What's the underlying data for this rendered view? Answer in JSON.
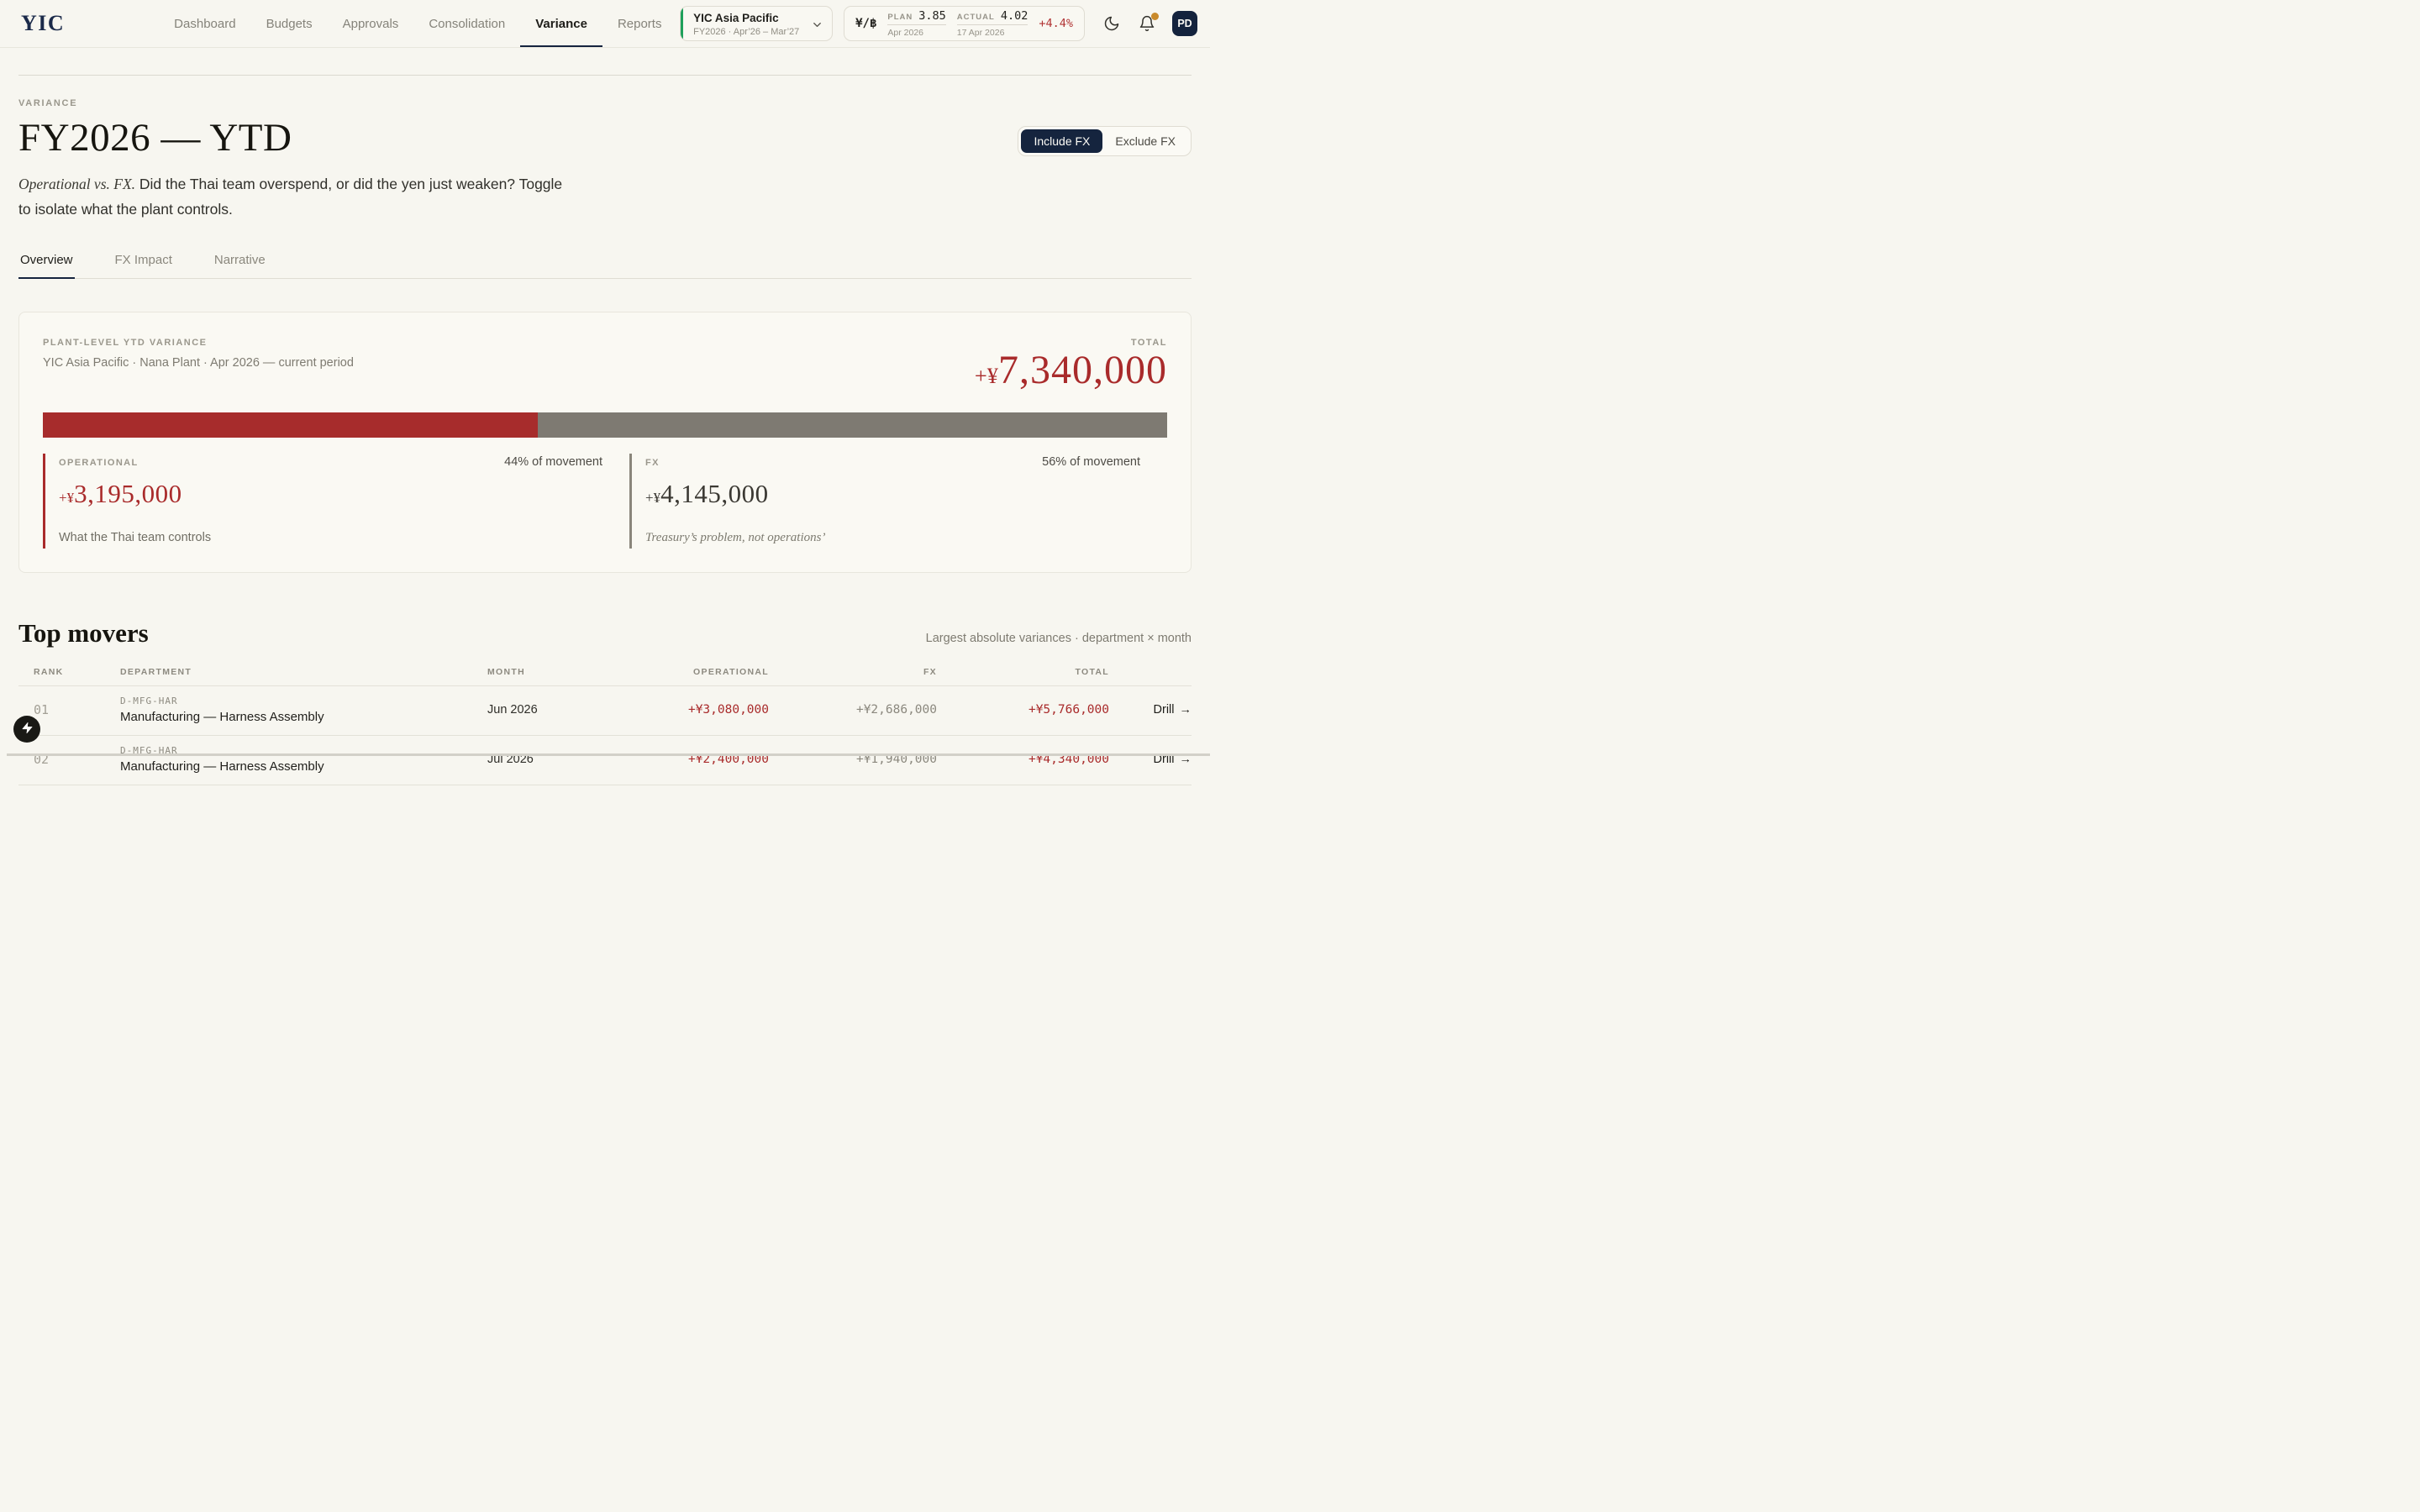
{
  "colors": {
    "accent_navy": "#15243E",
    "accent_red": "#A92B2B",
    "bar_red": "#A72C2C",
    "bar_taupe": "#7E7A72",
    "accent_green": "#1EA05A",
    "badge_gold": "#C98A2B"
  },
  "header": {
    "logo": "YIC",
    "nav": [
      {
        "label": "Dashboard"
      },
      {
        "label": "Budgets"
      },
      {
        "label": "Approvals"
      },
      {
        "label": "Consolidation"
      },
      {
        "label": "Variance",
        "active": true
      },
      {
        "label": "Reports"
      }
    ],
    "entity": {
      "name": "YIC Asia Pacific",
      "period": "FY2026 · Apr’26 – Mar’27"
    },
    "fx_rate": {
      "pair": "¥/฿",
      "plan_label": "PLAN",
      "plan_value": "3.85",
      "plan_date": "Apr 2026",
      "actual_label": "ACTUAL",
      "actual_value": "4.02",
      "actual_date": "17 Apr 2026",
      "delta": "+4.4%"
    },
    "avatar": "PD"
  },
  "page": {
    "eyebrow": "VARIANCE",
    "title": "FY2026 — YTD",
    "subtitle_lead": "Operational vs. FX.",
    "subtitle_line1": " Did the Thai team overspend, or did the yen just weaken? Toggle",
    "subtitle_line2": "to isolate what the plant controls.",
    "fx_toggle": {
      "include": "Include FX",
      "exclude": "Exclude FX",
      "active": "include"
    },
    "tabs": [
      {
        "label": "Overview",
        "active": true
      },
      {
        "label": "FX Impact"
      },
      {
        "label": "Narrative"
      }
    ]
  },
  "card": {
    "label": "PLANT-LEVEL YTD VARIANCE",
    "context": "YIC Asia Pacific · Nana Plant · Apr 2026 — current period",
    "total_label": "TOTAL",
    "total_prefix": "+¥",
    "total_value": "7,340,000",
    "bar": {
      "operational_pct": 44,
      "fx_pct": 56
    },
    "operational": {
      "label": "OPERATIONAL",
      "share": "44% of movement",
      "prefix": "+¥",
      "value": "3,195,000",
      "caption": "What the Thai team controls"
    },
    "fx": {
      "label": "FX",
      "share": "56% of movement",
      "prefix": "+¥",
      "value": "4,145,000",
      "caption": "Treasury’s problem, not operations’"
    }
  },
  "movers": {
    "title": "Top movers",
    "caption": "Largest absolute variances · department × month",
    "columns": {
      "rank": "RANK",
      "department": "DEPARTMENT",
      "month": "MONTH",
      "operational": "OPERATIONAL",
      "fx": "FX",
      "total": "TOTAL"
    },
    "drill_arrow": "→",
    "rows": [
      {
        "rank": "01",
        "code": "D-MFG-HAR",
        "department": "Manufacturing — Harness Assembly",
        "month": "Jun 2026",
        "operational": "+¥3,080,000",
        "fx": "+¥2,686,000",
        "total": "+¥5,766,000",
        "drill": "Drill"
      },
      {
        "rank": "02",
        "code": "D-MFG-HAR",
        "department": "Manufacturing — Harness Assembly",
        "month": "Jul 2026",
        "operational": "+¥2,400,000",
        "fx": "+¥1,940,000",
        "total": "+¥4,340,000",
        "drill": "Drill"
      }
    ]
  }
}
